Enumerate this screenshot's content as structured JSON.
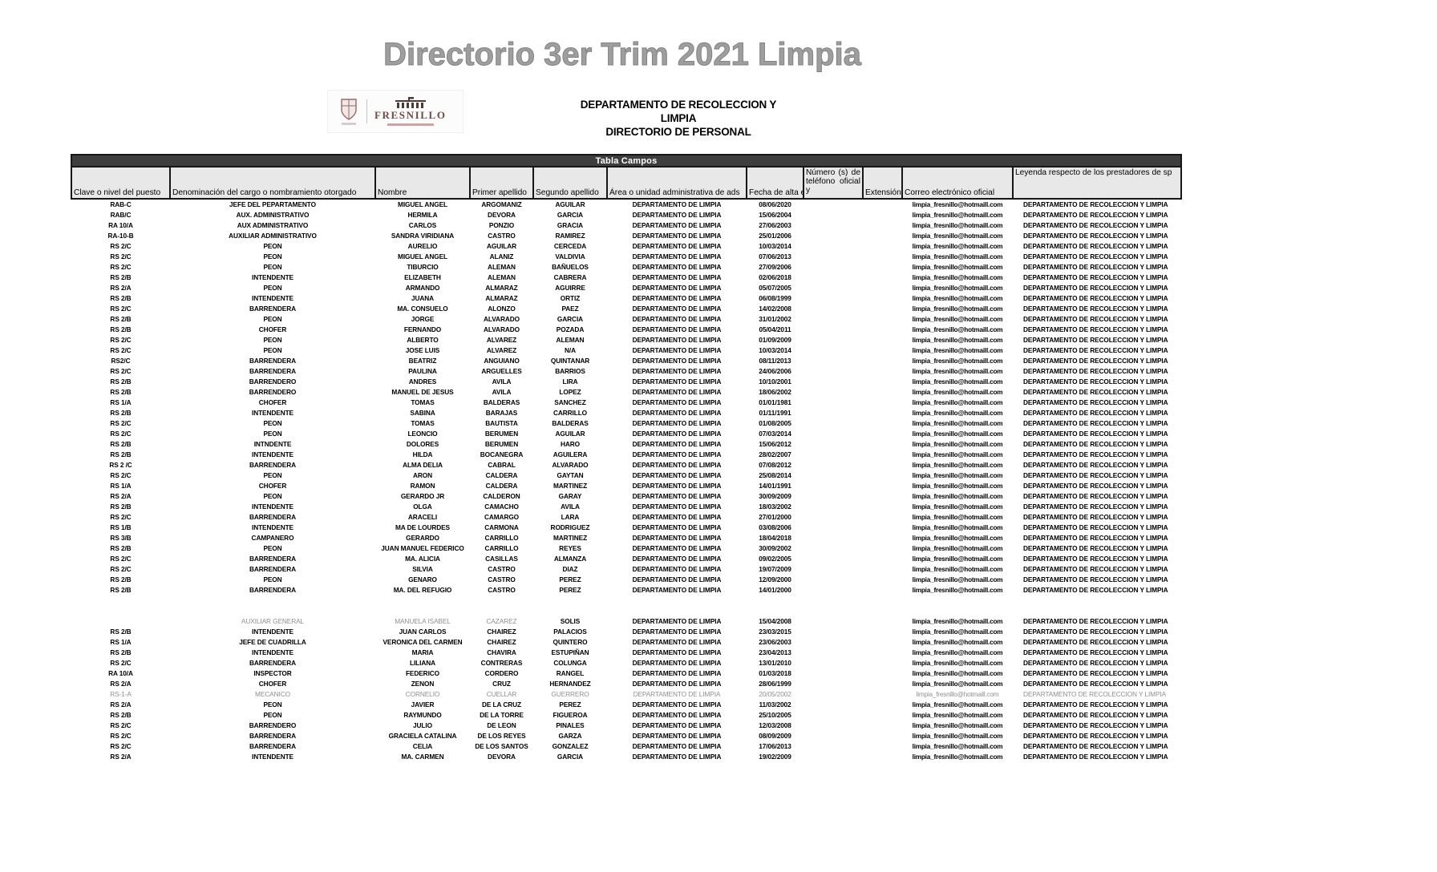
{
  "page": {
    "title": "Directorio 3er Trim 2021 Limpia"
  },
  "logo": {
    "word": "FRESNILLO"
  },
  "org_header": {
    "line1": "DEPARTAMENTO DE RECOLECCION Y LIMPIA",
    "line2": "DIRECTORIO DE PERSONAL"
  },
  "table": {
    "bar_title": "Tabla Campos",
    "headers": [
      "Clave o nivel del puesto",
      "Denominación del cargo o nombramiento otorgado",
      "Nombre",
      "Primer apellido",
      "Segundo apellido",
      "Área o unidad administrativa de ads",
      "Fecha de alta e",
      "Número (s) de teléfono oficial y",
      "Extensión",
      "Correo electrónico oficial",
      "Leyenda respecto de los prestadores de sp"
    ],
    "constants": {
      "area": "DEPARTAMENTO DE LIMPIA",
      "telefono": "",
      "extension": "",
      "correo": "limpia_fresnillo@hotmaill.com",
      "leyenda": "DEPARTAMENTO DE RECOLECCION Y LIMPIA"
    },
    "rows": [
      {
        "c": [
          "RAB-C",
          "JEFE DEL PEPARTAMENTO",
          "MIGUEL ANGEL",
          "ARGOMANIZ",
          "AGUILAR",
          "08/06/2020"
        ]
      },
      {
        "c": [
          "RAB/C",
          "AUX. ADMINISTRATIVO",
          "HERMILA",
          "DEVORA",
          "GARCIA",
          "15/06/2004"
        ]
      },
      {
        "c": [
          "RA 10/A",
          "AUX ADMINISTRATIVO",
          "CARLOS",
          "PONZIO",
          "GRACIA",
          "27/06/2003"
        ]
      },
      {
        "c": [
          "RA-10-B",
          "AUXILIAR ADMINISTRATIVO",
          "SANDRA VIRIDIANA",
          "CASTRO",
          "RAMIREZ",
          "25/01/2006"
        ]
      },
      {
        "c": [
          "RS 2/C",
          "PEON",
          "AURELIO",
          "AGUILAR",
          "CERCEDA",
          "10/03/2014"
        ]
      },
      {
        "c": [
          "RS 2/C",
          "PEON",
          "MIGUEL ANGEL",
          "ALANIZ",
          "VALDIVIA",
          "07/06/2013"
        ]
      },
      {
        "c": [
          "RS 2/C",
          "PEON",
          "TIBURCIO",
          "ALEMAN",
          "BAÑUELOS",
          "27/09/2006"
        ]
      },
      {
        "c": [
          "RS 2/B",
          "INTENDENTE",
          "ELIZABETH",
          "ALEMAN",
          "CABRERA",
          "02/06/2018"
        ]
      },
      {
        "c": [
          "RS 2/A",
          "PEON",
          "ARMANDO",
          "ALMARAZ",
          "AGUIRRE",
          "05/07/2005"
        ]
      },
      {
        "c": [
          "RS 2/B",
          "INTENDENTE",
          "JUANA",
          "ALMARAZ",
          "ORTIZ",
          "06/08/1999"
        ]
      },
      {
        "c": [
          "RS 2/C",
          "BARRENDERA",
          "MA. CONSUELO",
          "ALONZO",
          "PAEZ",
          "14/02/2008"
        ]
      },
      {
        "c": [
          "RS 2/B",
          "PEON",
          "JORGE",
          "ALVARADO",
          "GARCIA",
          "31/01/2002"
        ]
      },
      {
        "c": [
          "RS 2/B",
          "CHOFER",
          "FERNANDO",
          "ALVARADO",
          "POZADA",
          "05/04/2011"
        ]
      },
      {
        "c": [
          "RS 2/C",
          "PEON",
          "ALBERTO",
          "ALVAREZ",
          "ALEMAN",
          "01/09/2009"
        ]
      },
      {
        "c": [
          "RS 2/C",
          "PEON",
          "JOSE LUIS",
          "ALVAREZ",
          "N/A",
          "10/03/2014"
        ]
      },
      {
        "c": [
          "RS2/C",
          "BARRENDERA",
          "BEATRIZ",
          "ANGUIANO",
          "QUINTANAR",
          "08/11/2013"
        ]
      },
      {
        "c": [
          "RS 2/C",
          "BARRENDERA",
          "PAULINA",
          "ARGUELLES",
          "BARRIOS",
          "24/06/2006"
        ]
      },
      {
        "c": [
          "RS 2/B",
          "BARRENDERO",
          "ANDRES",
          "AVILA",
          "LIRA",
          "10/10/2001"
        ]
      },
      {
        "c": [
          "RS 2/B",
          "BARRENDERO",
          "MANUEL DE JESUS",
          "AVILA",
          "LOPEZ",
          "18/06/2002"
        ]
      },
      {
        "c": [
          "RS 1/A",
          "CHOFER",
          "TOMAS",
          "BALDERAS",
          "SANCHEZ",
          "01/01/1981"
        ]
      },
      {
        "c": [
          "RS 2/B",
          "INTENDENTE",
          "SABINA",
          "BARAJAS",
          "CARRILLO",
          "01/11/1991"
        ]
      },
      {
        "c": [
          "RS 2/C",
          "PEON",
          "TOMAS",
          "BAUTISTA",
          "BALDERAS",
          "01/08/2005"
        ]
      },
      {
        "c": [
          "RS 2/C",
          "PEON",
          "LEONCIO",
          "BERUMEN",
          "AGUILAR",
          "07/03/2014"
        ]
      },
      {
        "c": [
          "RS 2/B",
          "INTNDENTE",
          "DOLORES",
          "BERUMEN",
          "HARO",
          "15/06/2012"
        ]
      },
      {
        "c": [
          "RS 2/B",
          "INTENDENTE",
          "HILDA",
          "BOCANEGRA",
          "AGUILERA",
          "28/02/2007"
        ]
      },
      {
        "c": [
          "RS 2 /C",
          "BARRENDERA",
          "ALMA DELIA",
          "CABRAL",
          "ALVARADO",
          "07/08/2012"
        ]
      },
      {
        "c": [
          "RS 2/C",
          "PEON",
          "ARON",
          "CALDERA",
          "GAYTAN",
          "25/08/2014"
        ]
      },
      {
        "c": [
          "RS 1/A",
          "CHOFER",
          "RAMON",
          "CALDERA",
          "MARTINEZ",
          "14/01/1991"
        ]
      },
      {
        "c": [
          "RS 2/A",
          "PEON",
          "GERARDO JR",
          "CALDERON",
          "GARAY",
          "30/09/2009"
        ]
      },
      {
        "c": [
          "RS 2/B",
          "INTENDENTE",
          "OLGA",
          "CAMACHO",
          "AVILA",
          "18/03/2002"
        ]
      },
      {
        "c": [
          "RS 2/C",
          "BARRENDERA",
          "ARACELI",
          "CAMARGO",
          "LARA",
          "27/01/2000"
        ]
      },
      {
        "c": [
          "RS 1/B",
          "INTENDENTE",
          "MA DE LOURDES",
          "CARMONA",
          "RODRIGUEZ",
          "03/08/2006"
        ]
      },
      {
        "c": [
          "RS 3/B",
          "CAMPANERO",
          "GERARDO",
          "CARRILLO",
          "MARTINEZ",
          "18/04/2018"
        ]
      },
      {
        "c": [
          "RS 2/B",
          "PEON",
          "JUAN MANUEL FEDERICO",
          "CARRILLO",
          "REYES",
          "30/09/2002"
        ]
      },
      {
        "c": [
          "RS 2/C",
          "BARRENDERA",
          "MA. ALICIA",
          "CASILLAS",
          "ALMANZA",
          "09/02/2005"
        ]
      },
      {
        "c": [
          "RS 2/C",
          "BARRENDERA",
          "SILVIA",
          "CASTRO",
          "DIAZ",
          "19/07/2009"
        ]
      },
      {
        "c": [
          "RS 2/B",
          "PEON",
          "GENARO",
          "CASTRO",
          "PEREZ",
          "12/09/2000"
        ]
      },
      {
        "c": [
          "RS 2/B",
          "BARRENDERA",
          "MA. DEL REFUGIO",
          "CASTRO",
          "PEREZ",
          "14/01/2000"
        ]
      },
      {
        "c": [
          "",
          "",
          "",
          "",
          "",
          ""
        ],
        "s": "blank"
      },
      {
        "c": [
          "",
          "",
          "",
          "",
          "",
          ""
        ],
        "s": "blank"
      },
      {
        "c": [
          "",
          "AUXILIAR GENERAL",
          "MANUELA ISABEL",
          "CAZAREZ",
          "SOLIS",
          "15/04/2008"
        ],
        "s": "gray-partial"
      },
      {
        "c": [
          "RS 2/B",
          "INTENDENTE",
          "JUAN CARLOS",
          "CHAIREZ",
          "PALACIOS",
          "23/03/2015"
        ]
      },
      {
        "c": [
          "RS 1/A",
          "JEFE DE CUADRILLA",
          "VERONICA DEL CARMEN",
          "CHAIREZ",
          "QUINTERO",
          "23/06/2003"
        ]
      },
      {
        "c": [
          "RS 2/B",
          "INTENDENTE",
          "MARIA",
          "CHAVIRA",
          "ESTUPIÑAN",
          "23/04/2013"
        ]
      },
      {
        "c": [
          "RS 2/C",
          "BARRENDERA",
          "LILIANA",
          "CONTRERAS",
          "COLUNGA",
          "13/01/2010"
        ]
      },
      {
        "c": [
          "RA 10/A",
          "INSPECTOR",
          "FEDERICO",
          "CORDERO",
          "RANGEL",
          "01/03/2018"
        ]
      },
      {
        "c": [
          "RS 2/A",
          "CHOFER",
          "ZENON",
          "CRUZ",
          "HERNANDEZ",
          "28/06/1999"
        ]
      },
      {
        "c": [
          "RS-1-A",
          "MECANICO",
          "CORNELIO",
          "CUELLAR",
          "GUERRERO",
          "20/05/2002"
        ],
        "s": "gray"
      },
      {
        "c": [
          "RS 2/A",
          "PEON",
          "JAVIER",
          "DE LA CRUZ",
          "PEREZ",
          "11/03/2002"
        ]
      },
      {
        "c": [
          "RS 2/B",
          "PEON",
          "RAYMUNDO",
          "DE LA TORRE",
          "FIGUEROA",
          "25/10/2005"
        ]
      },
      {
        "c": [
          "RS 2/C",
          "BARRENDERO",
          "JULIO",
          "DE LEON",
          "PINALES",
          "12/03/2008"
        ]
      },
      {
        "c": [
          "RS 2/C",
          "BARRENDERA",
          "GRACIELA CATALINA",
          "DE LOS REYES",
          "GARZA",
          "08/09/2009"
        ]
      },
      {
        "c": [
          "RS 2/C",
          "BARRENDERA",
          "CELIA",
          "DE LOS SANTOS",
          "GONZALEZ",
          "17/06/2013"
        ]
      },
      {
        "c": [
          "RS 2/A",
          "INTENDENTE",
          "MA. CARMEN",
          "DEVORA",
          "GARCIA",
          "19/02/2009"
        ]
      }
    ]
  }
}
